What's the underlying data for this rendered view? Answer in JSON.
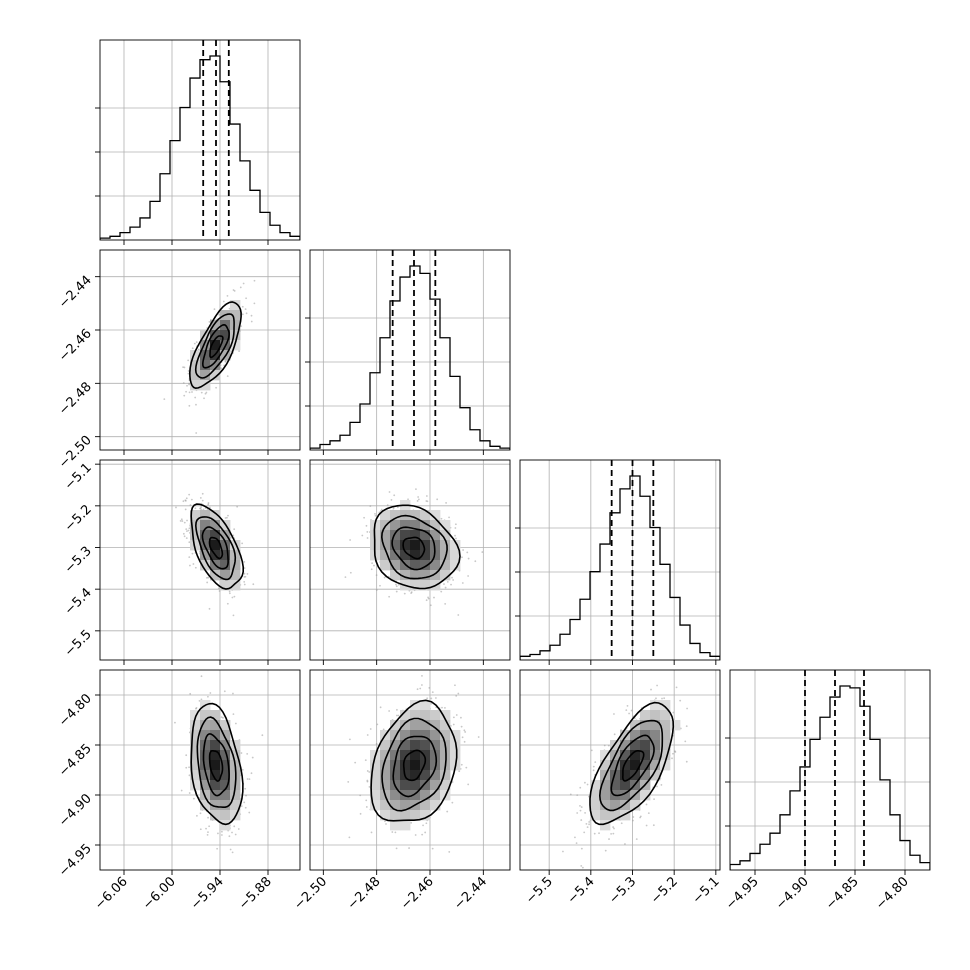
{
  "chart_data": {
    "type": "scatter",
    "title": "",
    "parameters": [
      {
        "index": 0,
        "range": [
          -6.09,
          -5.84
        ],
        "ticks": [
          -6.06,
          -6.0,
          -5.94,
          -5.88
        ],
        "tick_labels": [
          "−6.06",
          "−6.00",
          "−5.94",
          "−5.88"
        ],
        "median": -5.945,
        "q16": -5.961,
        "q84": -5.929,
        "sigma": 0.016
      },
      {
        "index": 1,
        "range": [
          -2.505,
          -2.43
        ],
        "ticks": [
          -2.5,
          -2.48,
          -2.46,
          -2.44
        ],
        "tick_labels": [
          "−2.50",
          "−2.48",
          "−2.46",
          "−2.44"
        ],
        "median": -2.466,
        "q16": -2.474,
        "q84": -2.458,
        "sigma": 0.008
      },
      {
        "index": 2,
        "range": [
          -5.57,
          -5.09
        ],
        "ticks": [
          -5.5,
          -5.4,
          -5.3,
          -5.2,
          -5.1
        ],
        "tick_labels": [
          "−5.5",
          "−5.4",
          "−5.3",
          "−5.2",
          "−5.1"
        ],
        "median": -5.3,
        "q16": -5.35,
        "q84": -5.25,
        "sigma": 0.05
      },
      {
        "index": 3,
        "range": [
          -4.975,
          -4.775
        ],
        "ticks": [
          -4.95,
          -4.9,
          -4.85,
          -4.8
        ],
        "tick_labels": [
          "−4.95",
          "−4.90",
          "−4.85",
          "−4.80"
        ],
        "median": -4.87,
        "q16": -4.9,
        "q84": -4.841,
        "sigma": 0.03
      }
    ],
    "correlations": {
      "1_0": 0.7,
      "2_0": -0.55,
      "2_1": -0.2,
      "3_0": -0.3,
      "3_1": 0.25,
      "3_2": 0.65
    },
    "histograms": {
      "0": [
        0.01,
        0.02,
        0.04,
        0.07,
        0.12,
        0.21,
        0.36,
        0.54,
        0.72,
        0.88,
        0.98,
        1.0,
        0.86,
        0.63,
        0.43,
        0.27,
        0.15,
        0.08,
        0.04,
        0.02
      ],
      "1": [
        0.01,
        0.03,
        0.05,
        0.08,
        0.15,
        0.25,
        0.42,
        0.61,
        0.81,
        0.94,
        1.0,
        0.96,
        0.82,
        0.61,
        0.4,
        0.23,
        0.11,
        0.05,
        0.02,
        0.01
      ],
      "2": [
        0.02,
        0.03,
        0.05,
        0.08,
        0.14,
        0.22,
        0.33,
        0.48,
        0.63,
        0.8,
        0.93,
        1.0,
        0.89,
        0.72,
        0.52,
        0.34,
        0.19,
        0.09,
        0.04,
        0.02
      ],
      "3": [
        0.03,
        0.05,
        0.09,
        0.14,
        0.2,
        0.3,
        0.43,
        0.56,
        0.71,
        0.83,
        0.94,
        1.0,
        0.99,
        0.89,
        0.71,
        0.49,
        0.3,
        0.16,
        0.08,
        0.04
      ]
    },
    "contour_levels_sigma": [
      0.5,
      1.0,
      1.5,
      2.0
    ],
    "grid": true
  }
}
